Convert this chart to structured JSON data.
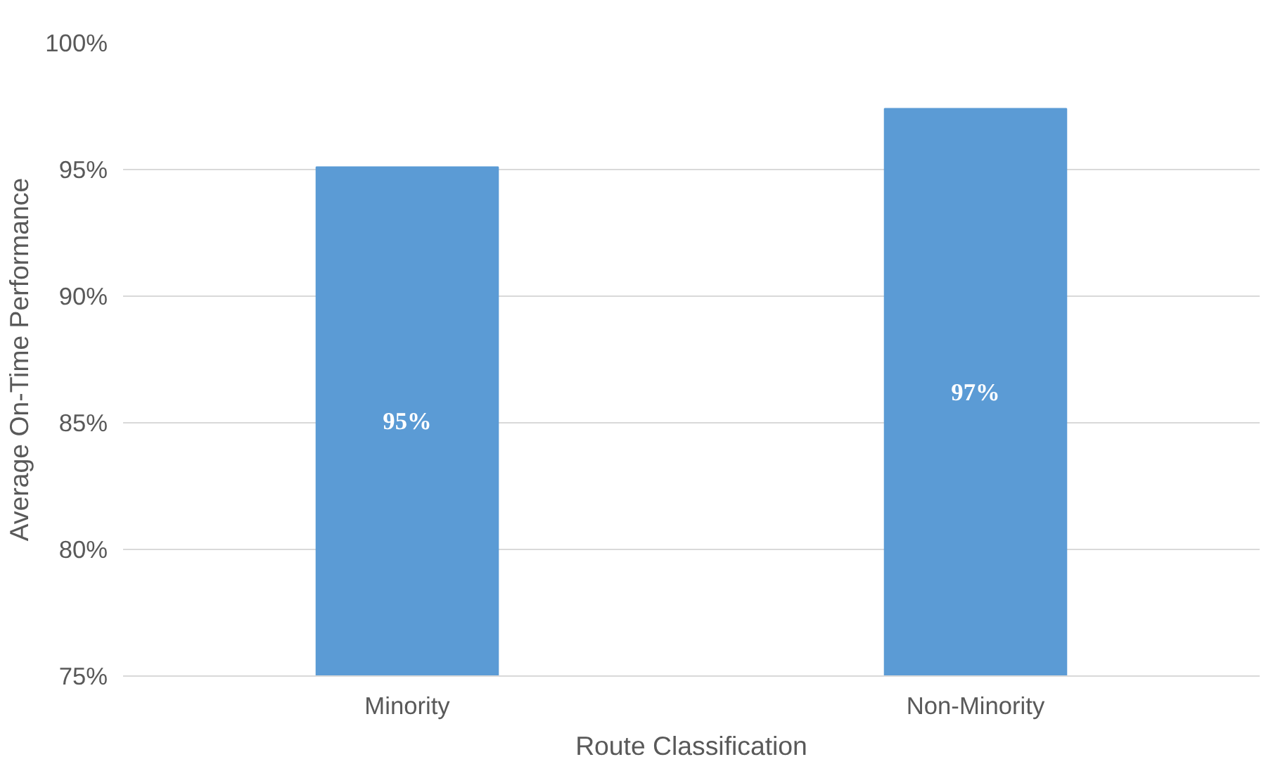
{
  "chart_data": {
    "type": "bar",
    "xlabel": "Route Classification",
    "ylabel": "Average On-Time Performance",
    "categories": [
      "Minority",
      "Non-Minority"
    ],
    "values": [
      95.1,
      97.4
    ],
    "color": "#5b9bd5",
    "value_labels": [
      "95%",
      "97%"
    ],
    "ylim": [
      75,
      100
    ],
    "yticks": [
      {
        "value": 75,
        "label": "75%"
      },
      {
        "value": 80,
        "label": "80%"
      },
      {
        "value": 85,
        "label": "85%"
      },
      {
        "value": 90,
        "label": "90%"
      },
      {
        "value": 95,
        "label": "95%"
      },
      {
        "value": 100,
        "label": "100%"
      }
    ],
    "grid": "y"
  }
}
